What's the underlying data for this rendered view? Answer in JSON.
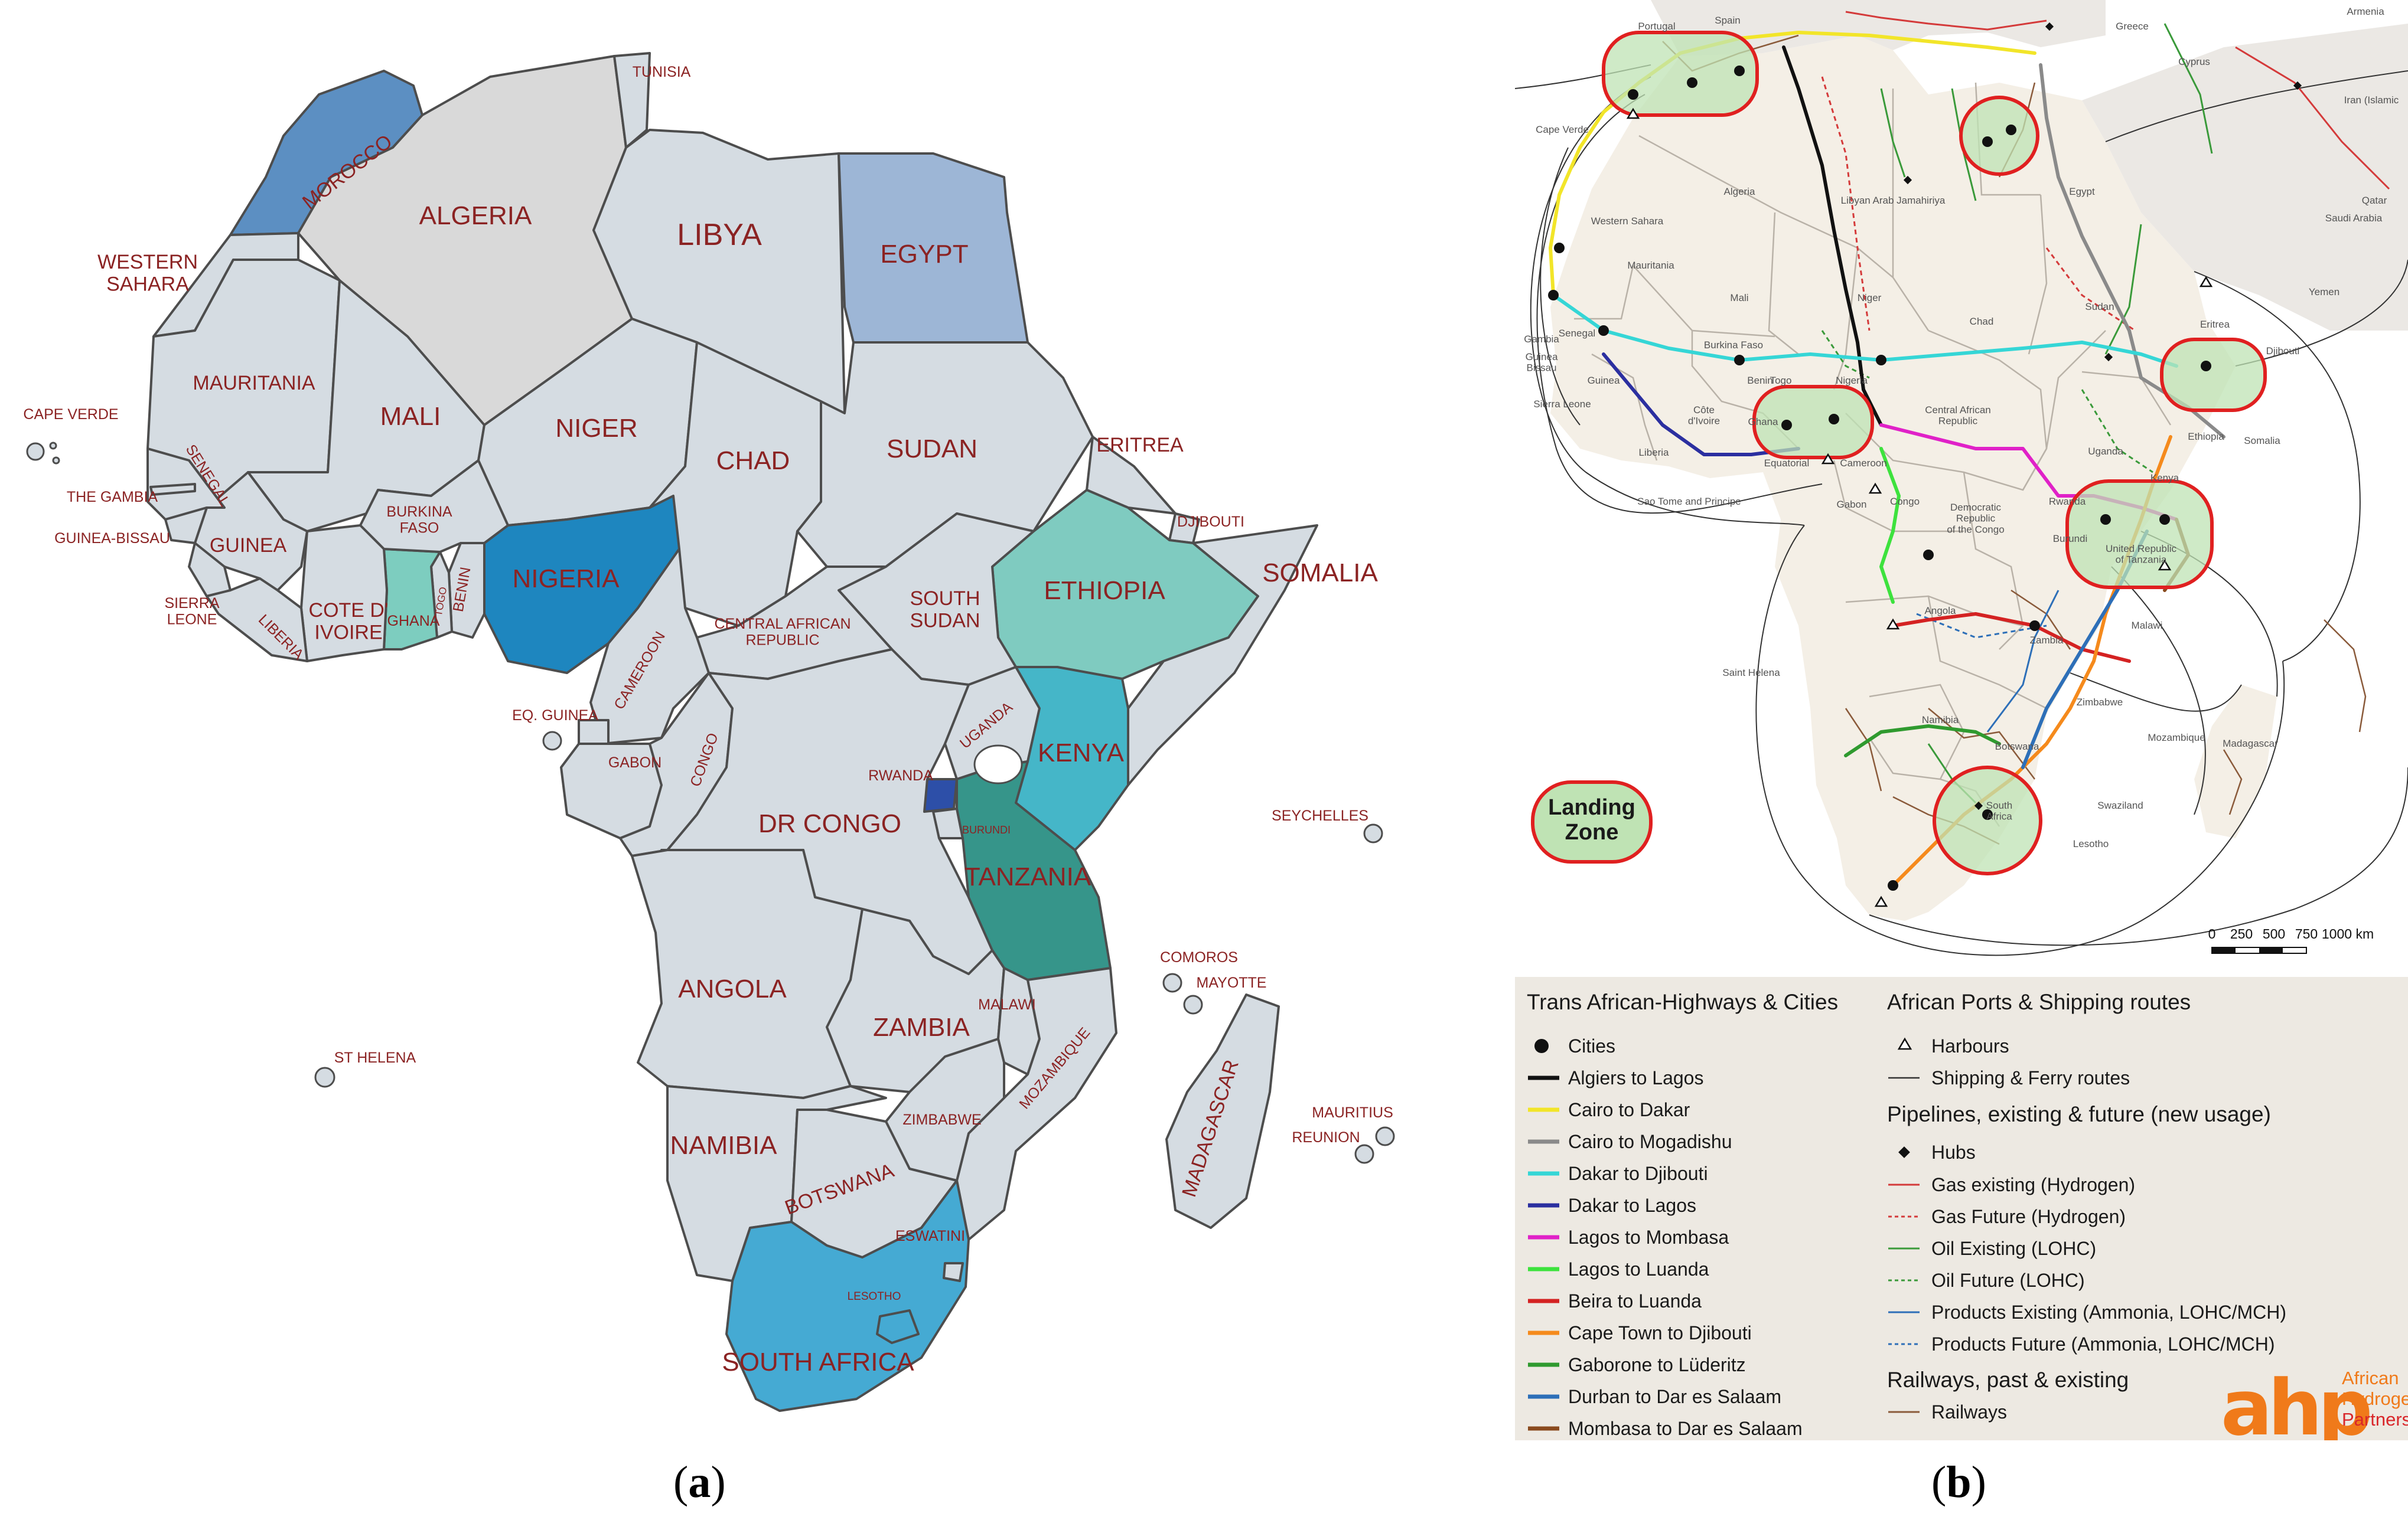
{
  "panel_a": {
    "caption_letter": "a",
    "colors": {
      "default_land": "#d5dce2",
      "border": "#4d4d4d",
      "label": "#8b2323",
      "morocco": "#5c8fc2",
      "egypt": "#9db6d6",
      "algeria": "#d9d9d9",
      "nigeria": "#1e86bf",
      "ghana": "#7dcdbf",
      "ethiopia": "#7fcbc0",
      "kenya": "#45b6c8",
      "tanzania": "#36958a",
      "rwanda": "#2d4fa8",
      "south_africa": "#45aad3"
    },
    "country_labels": {
      "tunisia": "TUNISIA",
      "morocco": "MOROCCO",
      "algeria": "ALGERIA",
      "libya": "LIBYA",
      "egypt": "EGYPT",
      "western_sahara": "WESTERN\nSAHARA",
      "mauritania": "MAURITANIA",
      "mali": "MALI",
      "niger": "NIGER",
      "chad": "CHAD",
      "sudan": "SUDAN",
      "eritrea": "ERITREA",
      "djibouti": "DJIBOUTI",
      "somalia": "SOMALIA",
      "ethiopia": "ETHIOPIA",
      "south_sudan": "SOUTH\nSUDAN",
      "central_african_republic": "CENTRAL AFRICAN\nREPUBLIC",
      "nigeria": "NIGERIA",
      "cameroon": "CAMEROON",
      "benin": "BENIN",
      "togo": "TOGO",
      "ghana": "GHANA",
      "cote_divoire": "COTE D'\nIVOIRE",
      "burkina_faso": "BURKINA\nFASO",
      "guinea": "GUINEA",
      "senegal": "SENEGAL",
      "the_gambia": "THE GAMBIA",
      "guinea_bissau": "GUINEA-BISSAU",
      "sierra_leone": "SIERRA\nLEONE",
      "liberia": "LIBERIA",
      "cape_verde": "CAPE VERDE",
      "eq_guinea": "EQ. GUINEA",
      "gabon": "GABON",
      "congo": "CONGO",
      "dr_congo": "DR CONGO",
      "uganda": "UGANDA",
      "kenya": "KENYA",
      "rwanda": "RWANDA",
      "burundi": "BURUNDI",
      "tanzania": "TANZANIA",
      "seychelles": "SEYCHELLES",
      "comoros": "COMOROS",
      "mayotte": "MAYOTTE",
      "angola": "ANGOLA",
      "zambia": "ZAMBIA",
      "malawi": "MALAWI",
      "mozambique": "MOZAMBIQUE",
      "zimbabwe": "ZIMBABWE",
      "madagascar": "MADAGASCAR",
      "mauritius": "MAURITIUS",
      "reunion": "REUNION",
      "st_helena": "ST HELENA",
      "namibia": "NAMIBIA",
      "botswana": "BOTSWANA",
      "eswatini": "ESWATINI",
      "lesotho": "LESOTHO",
      "south_africa": "SOUTH AFRICA"
    }
  },
  "panel_b": {
    "caption_letter": "b",
    "colors": {
      "sea": "#ffffff",
      "land": "#f4efe6",
      "outside_land": "#ebe8e4",
      "border": "#b9b2a8",
      "legend_bg": "#ede9e2",
      "zone_fill": "#bfe3b4",
      "zone_stroke": "#e02020",
      "algiers_lagos": "#111111",
      "cairo_dakar": "#f2e529",
      "cairo_mogadishu": "#8a8a8a",
      "dakar_djibouti": "#35d6d6",
      "dakar_lagos": "#2b2fa0",
      "lagos_mombasa": "#e021c8",
      "lagos_luanda": "#3de23d",
      "beira_luanda": "#d42222",
      "capetown_djibouti": "#f58a1c",
      "gaborone_luderitz": "#2f9a2f",
      "durban_dar": "#2d6fb8",
      "mombasa_dar": "#8a4a1e",
      "gas": "#d43a3a",
      "oil": "#3a9a3a",
      "products": "#2d6fb8",
      "railway": "#8a5a3a",
      "ahp_orange": "#f07a1a",
      "ahp_red": "#d9262a"
    },
    "map_labels": {
      "portugal": "Portugal",
      "spain": "Spain",
      "greece": "Greece",
      "armenia": "Armenia",
      "cyprus": "Cyprus",
      "iran": "Iran (Islamic",
      "cape_verde": "Cape Verde",
      "algeria": "Algeria",
      "libya": "Libyan Arab Jamahiriya",
      "egypt": "Egypt",
      "qatar": "Qatar",
      "saudi": "Saudi Arabia",
      "western_sahara": "Western Sahara",
      "mauritania": "Mauritania",
      "mali": "Mali",
      "niger": "Niger",
      "chad": "Chad",
      "sudan": "Sudan",
      "eritrea": "Eritrea",
      "yemen": "Yemen",
      "djibouti": "Djibouti",
      "senegal": "Senegal",
      "gambia": "Gambia",
      "guinea_bissau": "Guinea\nBissau",
      "guinea": "Guinea",
      "sierra_leone": "Sierra Leone",
      "liberia": "Liberia",
      "burkina_faso": "Burkina Faso",
      "benin": "Benin",
      "togo": "Togo",
      "ghana": "Ghana",
      "cote_divoire": "Côte\nd'Ivoire",
      "nigeria": "Nigeria",
      "car": "Central African\nRepublic",
      "ethiopia": "Ethiopia",
      "somalia": "Somalia",
      "cameroon": "Cameroon",
      "equatorial": "Equatorial",
      "sao_tome": "Sao Tome and Principe",
      "gabon": "Gabon",
      "congo": "Congo",
      "drc": "Democratic\nRepublic\nof the Congo",
      "uganda": "Uganda",
      "kenya": "Kenya",
      "rwanda": "Rwanda",
      "burundi": "Burundi",
      "tanzania": "United Republic\nof Tanzania",
      "angola": "Angola",
      "malawi": "Malawi",
      "zambia": "Zambia",
      "saint_helena": "Saint Helena",
      "zimbabwe": "Zimbabwe",
      "mozambique": "Mozambique",
      "namibia": "Namibia",
      "botswana": "Botswana",
      "madagascar": "Madagascar",
      "south_africa": "South\nAfrica",
      "swaziland": "Swaziland",
      "lesotho": "Lesotho"
    },
    "landing_zone": "Landing\nZone",
    "scale": {
      "ticks": [
        "0",
        "250",
        "500",
        "750",
        "1000 km"
      ]
    },
    "legend": {
      "highways": {
        "title": "Trans African-Highways & Cities",
        "cities": "Cities",
        "routes": [
          {
            "label": "Algiers to Lagos",
            "color_key": "algiers_lagos"
          },
          {
            "label": "Cairo to Dakar",
            "color_key": "cairo_dakar"
          },
          {
            "label": "Cairo to Mogadishu",
            "color_key": "cairo_mogadishu"
          },
          {
            "label": "Dakar to Djibouti",
            "color_key": "dakar_djibouti"
          },
          {
            "label": "Dakar to Lagos",
            "color_key": "dakar_lagos"
          },
          {
            "label": "Lagos to Mombasa",
            "color_key": "lagos_mombasa"
          },
          {
            "label": "Lagos to Luanda",
            "color_key": "lagos_luanda"
          },
          {
            "label": "Beira to Luanda",
            "color_key": "beira_luanda"
          },
          {
            "label": "Cape Town to Djibouti",
            "color_key": "capetown_djibouti"
          },
          {
            "label": "Gaborone to Lüderitz",
            "color_key": "gaborone_luderitz"
          },
          {
            "label": "Durban to Dar es Salaam",
            "color_key": "durban_dar"
          },
          {
            "label": "Mombasa to Dar es Salaam",
            "color_key": "mombasa_dar"
          }
        ]
      },
      "ports": {
        "title": "African Ports & Shipping routes",
        "harbours": "Harbours",
        "shipping": "Shipping & Ferry routes"
      },
      "pipelines": {
        "title": "Pipelines, existing & future (new usage)",
        "hubs": "Hubs",
        "items": [
          {
            "label": "Gas existing (Hydrogen)",
            "color_key": "gas",
            "dashed": false
          },
          {
            "label": "Gas Future (Hydrogen)",
            "color_key": "gas",
            "dashed": true
          },
          {
            "label": "Oil Existing (LOHC)",
            "color_key": "oil",
            "dashed": false
          },
          {
            "label": "Oil Future (LOHC)",
            "color_key": "oil",
            "dashed": true
          },
          {
            "label": "Products Existing (Ammonia, LOHC/MCH)",
            "color_key": "products",
            "dashed": false
          },
          {
            "label": "Products Future (Ammonia, LOHC/MCH)",
            "color_key": "products",
            "dashed": true
          }
        ]
      },
      "railways": {
        "title": "Railways, past & existing",
        "item": "Railways"
      }
    },
    "logo": {
      "mark": "ahp",
      "line1": "African",
      "line2": "Hydrogen",
      "line3": "Partnership"
    }
  }
}
